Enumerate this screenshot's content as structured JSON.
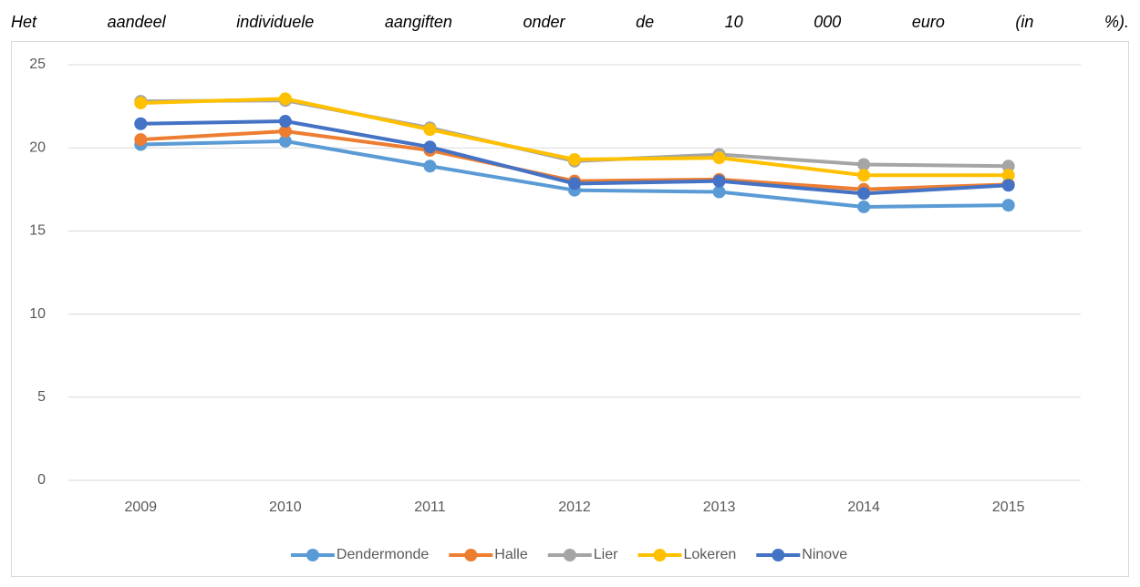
{
  "chart_data": {
    "type": "line",
    "title": "Het aandeel individuele aangiften onder de 10 000 euro (in %).",
    "categories": [
      "2009",
      "2010",
      "2011",
      "2012",
      "2013",
      "2014",
      "2015"
    ],
    "series": [
      {
        "name": "Dendermonde",
        "color": "#5b9bd5",
        "values": [
          20.2,
          20.4,
          18.9,
          17.45,
          17.35,
          16.45,
          16.55
        ]
      },
      {
        "name": "Halle",
        "color": "#ed7d31",
        "values": [
          20.5,
          21.0,
          19.85,
          18.0,
          18.1,
          17.5,
          17.8
        ]
      },
      {
        "name": "Lier",
        "color": "#a5a5a5",
        "values": [
          22.8,
          22.85,
          21.2,
          19.2,
          19.6,
          19.0,
          18.9
        ]
      },
      {
        "name": "Lokeren",
        "color": "#ffc000",
        "values": [
          22.7,
          22.95,
          21.1,
          19.3,
          19.4,
          18.35,
          18.35
        ]
      },
      {
        "name": "Ninove",
        "color": "#4472c4",
        "values": [
          21.45,
          21.6,
          20.05,
          17.85,
          18.0,
          17.25,
          17.75
        ]
      }
    ],
    "ylim": [
      0,
      25
    ],
    "yticks": [
      0,
      5,
      10,
      15,
      20,
      25
    ],
    "grid": true,
    "legend": "bottom"
  }
}
